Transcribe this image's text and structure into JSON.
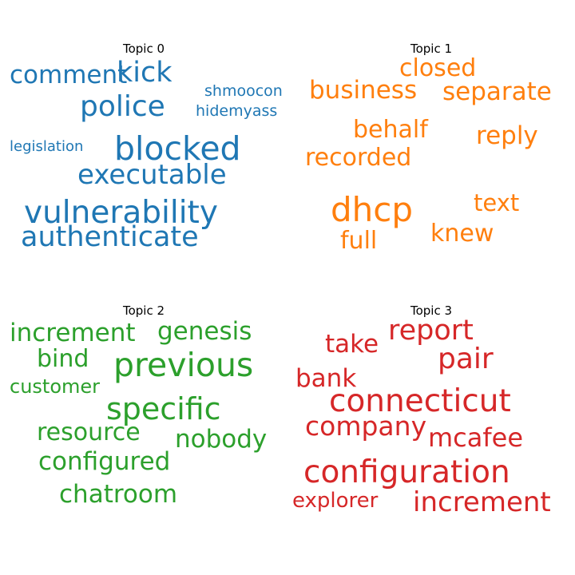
{
  "colors": {
    "topic0": "#1f77b4",
    "topic1": "#ff7f0e",
    "topic2": "#2ca02c",
    "topic3": "#d62728"
  },
  "panels": [
    {
      "title": "Topic 0",
      "words": [
        "comment",
        "kick",
        "police",
        "shmoocon",
        "hidemyass",
        "legislation",
        "blocked",
        "executable",
        "vulnerability",
        "authenticate"
      ]
    },
    {
      "title": "Topic 1",
      "words": [
        "closed",
        "business",
        "separate",
        "behalf",
        "reply",
        "recorded",
        "dhcp",
        "text",
        "knew",
        "full"
      ]
    },
    {
      "title": "Topic 2",
      "words": [
        "increment",
        "genesis",
        "bind",
        "previous",
        "customer",
        "specific",
        "resource",
        "nobody",
        "configured",
        "chatroom"
      ]
    },
    {
      "title": "Topic 3",
      "words": [
        "report",
        "take",
        "pair",
        "bank",
        "connecticut",
        "company",
        "mcafee",
        "configuration",
        "explorer",
        "increment"
      ]
    }
  ]
}
